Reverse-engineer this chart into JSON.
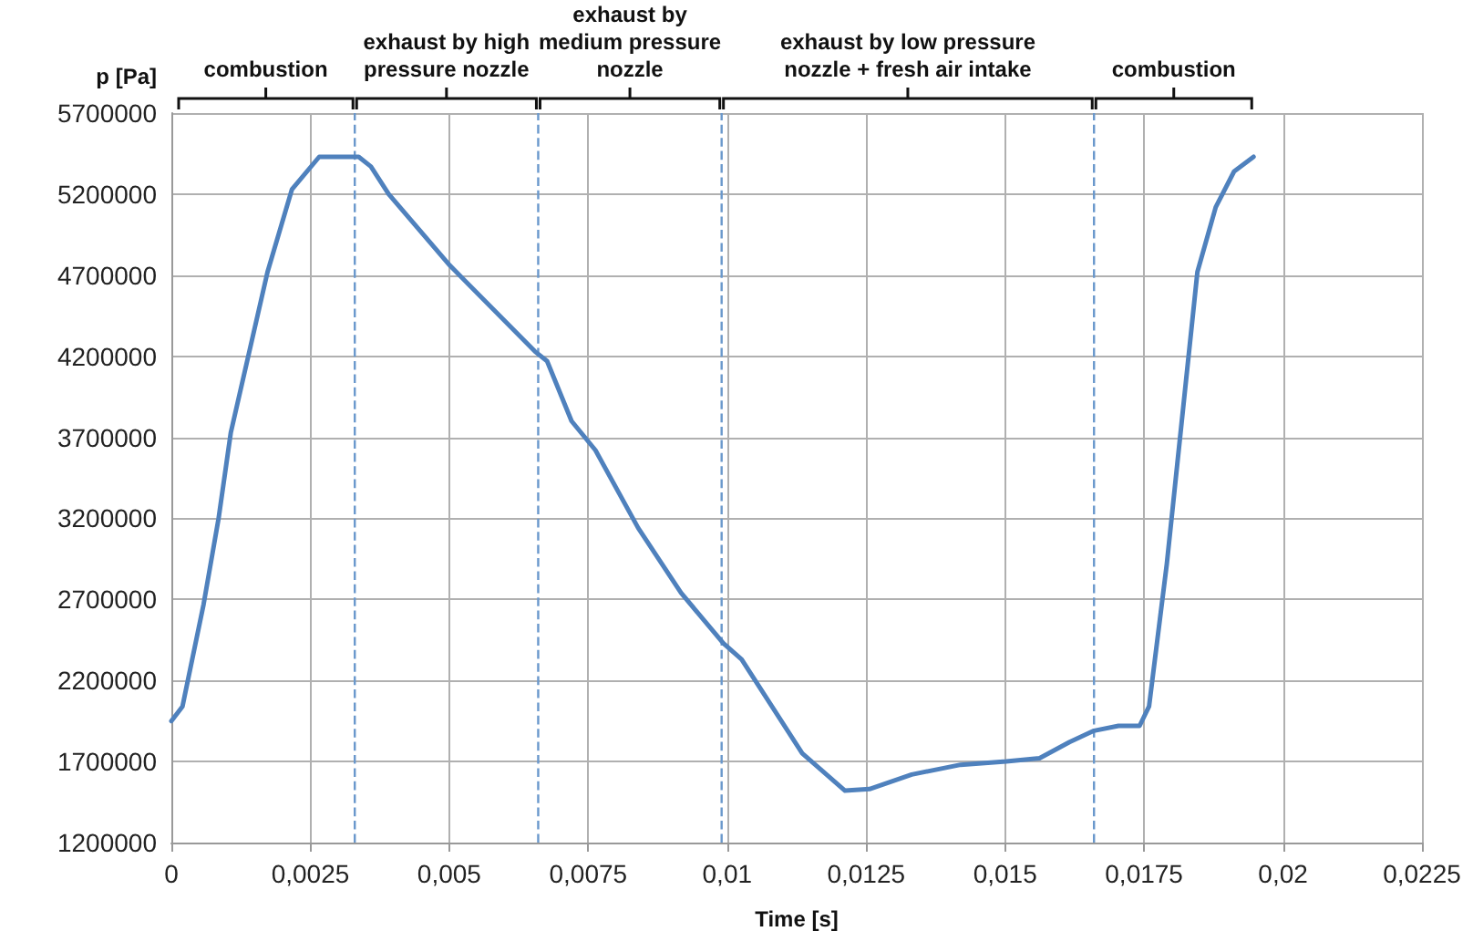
{
  "chart_data": {
    "type": "line",
    "xlabel": "Time [s]",
    "ylabel": "p [Pa]",
    "annotations": [
      "combustion",
      "exhaust by high pressure nozzle",
      "exhaust by medium pressure nozzle",
      "exhaust by low pressure nozzle + fresh air intake",
      "combustion"
    ],
    "series": [
      {
        "color": "#4f81bd",
        "x": [
          0,
          0.0002,
          0.00058,
          0.00085,
          0.00107,
          0.00173,
          0.00217,
          0.00266,
          0.00337,
          0.00359,
          0.00391,
          0.00501,
          0.00654,
          0.00676,
          0.0072,
          0.00763,
          0.0084,
          0.00917,
          0.00993,
          0.01026,
          0.01135,
          0.01212,
          0.01256,
          0.01332,
          0.0142,
          0.01502,
          0.01562,
          0.01616,
          0.0166,
          0.01704,
          0.01742,
          0.01759,
          0.01791,
          0.01846,
          0.01879,
          0.01912,
          0.01947
        ],
        "values": [
          1950000,
          2040000,
          2670000,
          3200000,
          3730000,
          4720000,
          5230000,
          5430000,
          5430000,
          5370000,
          5200000,
          4760000,
          4230000,
          4170000,
          3800000,
          3620000,
          3140000,
          2740000,
          2430000,
          2330000,
          1750000,
          1520000,
          1530000,
          1620000,
          1680000,
          1700000,
          1720000,
          1820000,
          1890000,
          1920000,
          1920000,
          2040000,
          2920000,
          4720000,
          5120000,
          5340000,
          5430000
        ]
      }
    ],
    "xlim": [
      0,
      0.0225
    ],
    "xticks": [
      0,
      {
        "value": 0.0025,
        "label": "0,0025"
      },
      {
        "value": 0.005,
        "label": "0,005"
      },
      {
        "value": 0.0075,
        "label": "0,0075"
      },
      {
        "value": 0.01,
        "label": "0,01"
      },
      {
        "value": 0.0125,
        "label": "0,0125"
      },
      {
        "value": 0.015,
        "label": "0,015"
      },
      {
        "value": 0.0175,
        "label": "0,0175"
      },
      {
        "value": 0.02,
        "label": "0,02"
      },
      {
        "value": 0.0225,
        "label": "0,0225"
      }
    ],
    "ylim": [
      1200000,
      5700000
    ],
    "yticks": [
      1200000,
      1700000,
      2200000,
      2700000,
      3200000,
      3700000,
      4200000,
      4700000,
      5200000,
      5700000
    ],
    "ref_lines": [
      {
        "axis": "x",
        "value": 0.0033,
        "color": "#6a98cc",
        "line_style": "dashed"
      },
      {
        "axis": "x",
        "value": 0.0066,
        "color": "#6a98cc",
        "line_style": "dashed"
      },
      {
        "axis": "x",
        "value": 0.0099,
        "color": "#6a98cc",
        "line_style": "dashed"
      },
      {
        "axis": "x",
        "value": 0.0166,
        "color": "#6a98cc",
        "line_style": "dashed"
      }
    ],
    "grid": true,
    "marker": "none",
    "line_style": "solid"
  }
}
